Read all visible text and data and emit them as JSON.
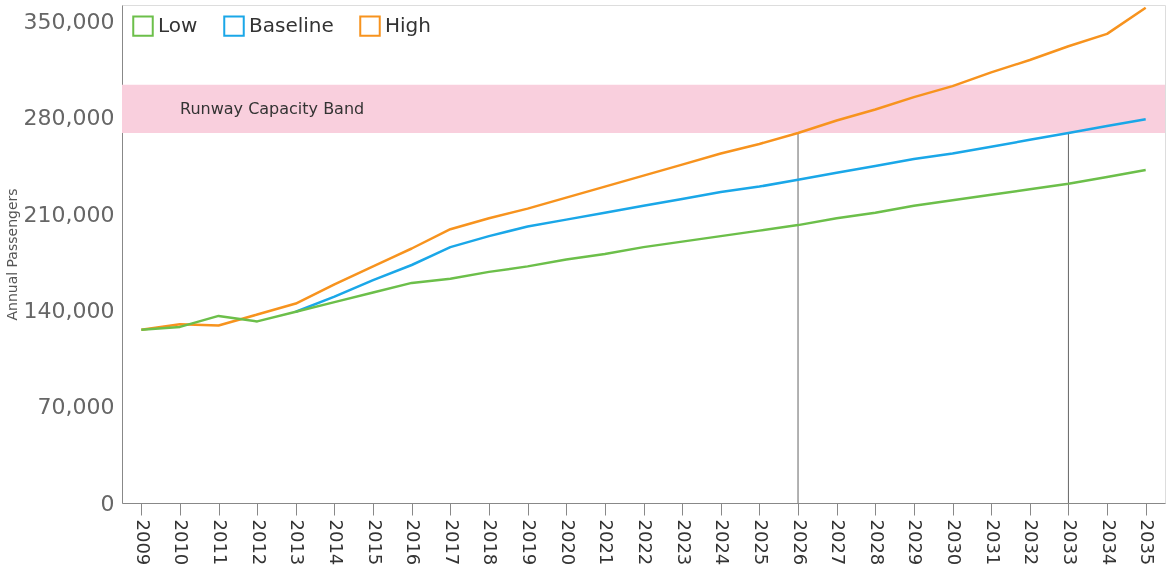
{
  "chart_data": {
    "type": "line",
    "ylabel": "Annual Passengers",
    "x": [
      2009,
      2010,
      2011,
      2012,
      2013,
      2014,
      2015,
      2016,
      2017,
      2018,
      2019,
      2020,
      2021,
      2022,
      2023,
      2024,
      2025,
      2026,
      2027,
      2028,
      2029,
      2030,
      2031,
      2032,
      2033,
      2034,
      2035
    ],
    "series": [
      {
        "name": "Low",
        "color": "#6cbf4a",
        "values": [
          126000,
          128000,
          136000,
          132000,
          139000,
          146000,
          153000,
          160000,
          163000,
          168000,
          172000,
          177000,
          181000,
          186000,
          190000,
          194000,
          198000,
          202000,
          207000,
          211000,
          216000,
          220000,
          224000,
          228000,
          232000,
          237000,
          242000
        ]
      },
      {
        "name": "Baseline",
        "color": "#1aa7e8",
        "values": [
          null,
          null,
          null,
          null,
          139000,
          150000,
          162000,
          173000,
          186000,
          194000,
          201000,
          206000,
          211000,
          216000,
          221000,
          226000,
          230000,
          235000,
          240000,
          245000,
          250000,
          254000,
          259000,
          264000,
          269000,
          274000,
          279000
        ]
      },
      {
        "name": "High",
        "color": "#f7931e",
        "values": [
          126000,
          130000,
          129000,
          137000,
          145000,
          159000,
          172000,
          185000,
          199000,
          207000,
          214000,
          222000,
          230000,
          238000,
          246000,
          254000,
          261000,
          269000,
          278000,
          286000,
          295000,
          303000,
          313000,
          322000,
          332000,
          341000,
          360000
        ]
      }
    ],
    "xlim": [
      2008.5,
      2035.5
    ],
    "xticks": [
      2009,
      2010,
      2011,
      2012,
      2013,
      2014,
      2015,
      2016,
      2017,
      2018,
      2019,
      2020,
      2021,
      2022,
      2023,
      2024,
      2025,
      2026,
      2027,
      2028,
      2029,
      2030,
      2031,
      2032,
      2033,
      2034,
      2035
    ],
    "ylim": [
      0,
      362000
    ],
    "yticks": [
      {
        "value": 0,
        "label": "0"
      },
      {
        "value": 70000,
        "label": "70,000"
      },
      {
        "value": 140000,
        "label": "140,000"
      },
      {
        "value": 210000,
        "label": "210,000"
      },
      {
        "value": 280000,
        "label": "280,000"
      },
      {
        "value": 350000,
        "label": "350,000"
      }
    ],
    "bands": [
      {
        "axis": "y",
        "from": 269000,
        "to": 304000,
        "label": "Runway Capacity Band",
        "color": "#f9cfdd"
      }
    ],
    "ref_lines": [
      {
        "axis": "x",
        "value": 2026,
        "color": "#666666"
      },
      {
        "axis": "x",
        "value": 2033,
        "color": "#666666"
      }
    ],
    "legend": "top left",
    "grid": false,
    "marker": "none",
    "line_style": "solid"
  }
}
